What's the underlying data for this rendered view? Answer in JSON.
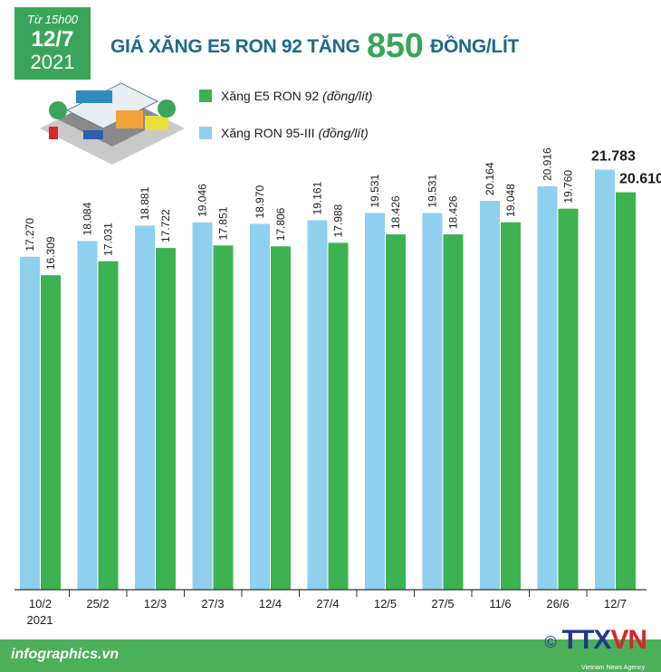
{
  "header": {
    "from_time": "Từ 15h00",
    "date": "12/7",
    "year": "2021",
    "title_prefix": "GIÁ XĂNG E5 RON 92 TĂNG",
    "title_number": "850",
    "title_suffix": "ĐỒNG/LÍT"
  },
  "legend": {
    "e5_label": "Xăng E5 RON 92",
    "e5_unit": "(đồng/lít)",
    "ron95_label": "Xăng RON 95-III",
    "ron95_unit": "(đồng/lít)"
  },
  "colors": {
    "ron95": "#8ed0ee",
    "e5": "#3cb251",
    "title": "#1f6a8a",
    "accent": "#3aa55a"
  },
  "footer": {
    "site": "infographics.vn",
    "copyright": "©",
    "brand_prefix": "TTX",
    "brand_suffix": "VN",
    "tagline": "Vietnam News Agency"
  },
  "chart_data": {
    "type": "bar",
    "categories": [
      "10/2",
      "25/2",
      "12/3",
      "27/3",
      "12/4",
      "27/4",
      "12/5",
      "27/5",
      "11/6",
      "26/6",
      "12/7"
    ],
    "year_label": "2021",
    "series": [
      {
        "name": "Xăng RON 95-III (đồng/lít)",
        "color": "#8ed0ee",
        "values": [
          17270,
          18084,
          18881,
          19046,
          18970,
          19161,
          19531,
          19531,
          20164,
          20916,
          21783
        ],
        "labels": [
          "17.270",
          "18.084",
          "18.881",
          "19.046",
          "18.970",
          "19.161",
          "19.531",
          "19.531",
          "20.164",
          "20.916",
          "21.783"
        ]
      },
      {
        "name": "Xăng E5 RON 92 (đồng/lít)",
        "color": "#3cb251",
        "values": [
          16309,
          17031,
          17722,
          17851,
          17806,
          17988,
          18426,
          18426,
          19048,
          19760,
          20610
        ],
        "labels": [
          "16.309",
          "17.031",
          "17.722",
          "17.851",
          "17.806",
          "17.988",
          "18.426",
          "18.426",
          "19.048",
          "19.760",
          "20.610"
        ]
      }
    ],
    "ylim": [
      0,
      22700
    ],
    "grid": false,
    "legend_position": "top-left"
  }
}
